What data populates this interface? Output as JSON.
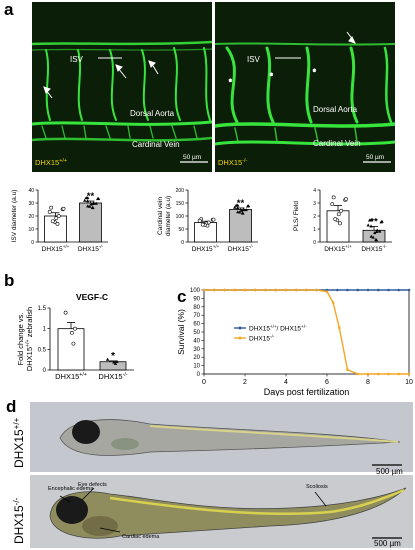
{
  "figure": {
    "panels": {
      "a": "a",
      "b": "b",
      "c": "c",
      "d": "d"
    }
  },
  "panel_a": {
    "micrographs": [
      {
        "genotype_base": "DHX15",
        "genotype_sup": "+/+",
        "labels": {
          "isv": "ISV",
          "dorsal_aorta": "Dorsal Aorta",
          "cardinal_vein": "Cardinal Vein"
        },
        "scale_bar": "50 µm"
      },
      {
        "genotype_base": "DHX15",
        "genotype_sup": "-/-",
        "labels": {
          "isv": "ISV",
          "dorsal_aorta": "Dorsal Aorta",
          "cardinal_vein": "Cardinal Vein"
        },
        "scale_bar": "50 µm"
      }
    ]
  },
  "chart_data": [
    {
      "id": "isv-diameter",
      "type": "bar",
      "ylabel": "ISV diameter (a.u)",
      "ylim": [
        0,
        40
      ],
      "yticks": [
        0,
        10,
        20,
        30,
        40
      ],
      "categories": [
        "DHX15+/+",
        "DHX15-/-"
      ],
      "values": [
        20,
        30
      ],
      "errors": [
        2.5,
        1.5
      ],
      "significance": [
        "",
        "**"
      ]
    },
    {
      "id": "cardinal-vein-diameter",
      "type": "bar",
      "ylabel": "Cardinal vein diameter (a.u)",
      "ylim": [
        0,
        200
      ],
      "yticks": [
        0,
        50,
        100,
        150,
        200
      ],
      "categories": [
        "DHX15+/+",
        "DHX15-/-"
      ],
      "values": [
        75,
        125
      ],
      "errors": [
        5,
        6
      ],
      "significance": [
        "",
        "**"
      ]
    },
    {
      "id": "pls-per-field",
      "type": "bar",
      "ylabel": "PLS/ Field",
      "ylim": [
        0,
        4
      ],
      "yticks": [
        0,
        1,
        2,
        3,
        4
      ],
      "categories": [
        "DHX15+/+",
        "DHX15-/-"
      ],
      "values": [
        2.4,
        0.9
      ],
      "errors": [
        0.4,
        0.3
      ],
      "significance": [
        "",
        "**"
      ]
    },
    {
      "id": "vegf-c",
      "type": "bar",
      "title": "VEGF-C",
      "ylabel": "Fold change vs. DHX15+/+ zebrafish",
      "ylim": [
        0,
        1.5
      ],
      "yticks": [
        0.0,
        0.5,
        1.0,
        1.5
      ],
      "categories": [
        "DHX15+/+",
        "DHX15-/-"
      ],
      "values": [
        1.0,
        0.2
      ],
      "errors": [
        0.15,
        0.02
      ],
      "significance": [
        "",
        "*"
      ]
    },
    {
      "id": "survival",
      "type": "line",
      "xlabel": "Days post fertilization",
      "ylabel": "Survival (%)",
      "xlim": [
        0,
        10
      ],
      "ylim": [
        0,
        100
      ],
      "xticks": [
        0,
        2,
        4,
        6,
        8,
        10
      ],
      "yticks": [
        0,
        10,
        20,
        30,
        40,
        50,
        60,
        70,
        80,
        90,
        100
      ],
      "series": [
        {
          "name": "DHX15+/+/ DHX15+/-",
          "color": "#2f5d9a",
          "x": [
            0,
            0.5,
            1,
            1.5,
            2,
            2.5,
            3,
            3.5,
            4,
            4.5,
            5,
            5.5,
            6,
            6.5,
            7,
            7.5,
            8,
            8.5,
            9,
            9.5,
            10
          ],
          "y": [
            100,
            100,
            100,
            100,
            100,
            100,
            100,
            100,
            100,
            100,
            100,
            100,
            100,
            100,
            100,
            100,
            100,
            100,
            100,
            100,
            100
          ]
        },
        {
          "name": "DHX15-/-",
          "color": "#f5a623",
          "x": [
            0,
            0.5,
            1,
            1.5,
            2,
            2.5,
            3,
            3.5,
            4,
            4.5,
            5,
            5.5,
            6,
            6.3,
            6.6,
            7,
            7.5,
            8,
            8.5,
            9,
            9.5,
            10
          ],
          "y": [
            100,
            100,
            100,
            100,
            100,
            100,
            100,
            100,
            100,
            100,
            100,
            100,
            98,
            85,
            55,
            5,
            0,
            0,
            0,
            0,
            0,
            0
          ]
        }
      ]
    }
  ],
  "panel_d": {
    "genotypes": [
      {
        "base": "DHX15",
        "sup": "+/+"
      },
      {
        "base": "DHX15",
        "sup": "-/-"
      }
    ],
    "scale_bar": "500 µm",
    "annotations": {
      "eye": "Eye defects",
      "encephalic": "Encephalic edema",
      "cardiac": "Cardiac edema",
      "scoliosis": "Scoliosis"
    }
  },
  "colors": {
    "fluorescence_green": "#37e33c",
    "micrograph_bg": "#0b1e07",
    "mutant_line": "#f5a623",
    "wt_line": "#2f5d9a"
  }
}
